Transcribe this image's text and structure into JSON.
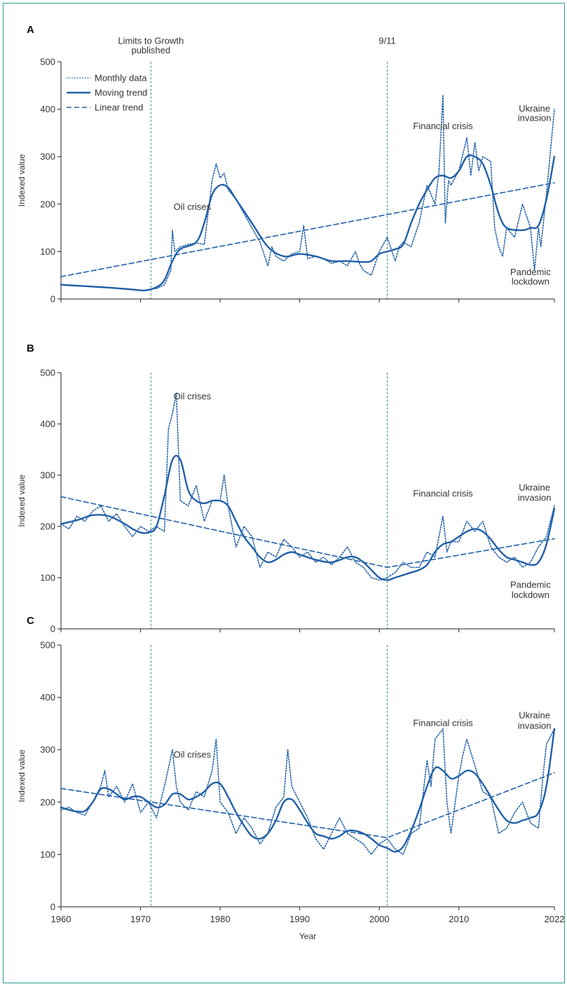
{
  "colors": {
    "series": "#2160a8",
    "event_line": "#2a8c86",
    "axis": "#222222",
    "frame": "#2a9d8f"
  },
  "x_axis_label": "Year",
  "legend": [
    "Monthly data",
    "Moving trend",
    "Linear trend"
  ],
  "chart_data": [
    {
      "panel": "A",
      "type": "line",
      "ylabel": "Indexed value",
      "xlim": [
        1960,
        2022
      ],
      "ylim": [
        0,
        500
      ],
      "x_ticks": [
        1960,
        1970,
        1980,
        1990,
        2000,
        2010,
        2022
      ],
      "y_ticks": [
        0,
        100,
        200,
        300,
        400,
        500
      ],
      "grid": false,
      "legend_position": "top-left",
      "event_lines": [
        1971.3,
        2001.0
      ],
      "annotations": [
        {
          "text": "Limits to Growth",
          "x": 1971.3,
          "y": 538
        },
        {
          "text": "published",
          "x": 1971.3,
          "y": 518
        },
        {
          "text": "9/11",
          "x": 2001.0,
          "y": 538
        },
        {
          "text": "Oil crises",
          "x": 1976.5,
          "y": 188
        },
        {
          "text": "Financial crisis",
          "x": 2008.0,
          "y": 358
        },
        {
          "text": "Ukraine",
          "x": 2019.5,
          "y": 395
        },
        {
          "text": "invasion",
          "x": 2019.5,
          "y": 375
        },
        {
          "text": "Pandemic",
          "x": 2019.0,
          "y": 50
        },
        {
          "text": "lockdown",
          "x": 2019.0,
          "y": 30
        }
      ],
      "series": [
        {
          "name": "Monthly data",
          "style": "dotted",
          "x": [
            1971,
            1972,
            1973,
            1973.8,
            1974,
            1974.3,
            1975,
            1976,
            1977,
            1978,
            1979,
            1979.5,
            1980,
            1980.5,
            1981,
            1982,
            1983,
            1984,
            1985,
            1986,
            1986.5,
            1987,
            1988,
            1989,
            1990,
            1990.5,
            1991,
            1992,
            1993,
            1994,
            1995,
            1996,
            1997,
            1997.5,
            1998,
            1999,
            2000,
            2001,
            2002,
            2002.5,
            2003,
            2004,
            2005,
            2006,
            2007,
            2007.5,
            2008,
            2008.3,
            2008.7,
            2009,
            2010,
            2011,
            2011.5,
            2012,
            2012.5,
            2013,
            2014,
            2014.5,
            2015,
            2015.5,
            2016,
            2017,
            2018,
            2019,
            2019.5,
            2020,
            2020.3,
            2021,
            2021.5,
            2022
          ],
          "y": [
            20,
            22,
            30,
            60,
            145,
            100,
            110,
            115,
            118,
            115,
            250,
            285,
            255,
            265,
            230,
            210,
            180,
            150,
            120,
            70,
            110,
            90,
            80,
            95,
            100,
            155,
            85,
            90,
            85,
            75,
            80,
            70,
            100,
            75,
            60,
            50,
            100,
            130,
            80,
            110,
            120,
            110,
            160,
            240,
            200,
            270,
            430,
            160,
            250,
            240,
            270,
            340,
            260,
            330,
            270,
            300,
            290,
            150,
            110,
            90,
            150,
            130,
            200,
            150,
            60,
            150,
            110,
            220,
            310,
            400
          ]
        },
        {
          "name": "Moving trend",
          "style": "solid",
          "x": [
            1960,
            1963,
            1966,
            1969,
            1970.5,
            1972,
            1973,
            1974,
            1975,
            1977,
            1978,
            1979,
            1980,
            1981,
            1982,
            1984,
            1986,
            1988,
            1990,
            1992,
            1994,
            1996,
            1998,
            1999,
            2000,
            2001,
            2002,
            2003,
            2004,
            2005,
            2006,
            2007,
            2008,
            2009,
            2010,
            2011,
            2012,
            2013,
            2014,
            2015,
            2016,
            2018,
            2019,
            2020,
            2021,
            2022
          ],
          "y": [
            30,
            27,
            24,
            20,
            18,
            25,
            40,
            80,
            105,
            120,
            160,
            220,
            240,
            235,
            210,
            160,
            110,
            90,
            95,
            90,
            80,
            80,
            78,
            80,
            95,
            100,
            105,
            115,
            160,
            200,
            230,
            255,
            260,
            255,
            270,
            300,
            300,
            285,
            240,
            180,
            150,
            145,
            150,
            155,
            210,
            300
          ]
        },
        {
          "name": "Linear trend",
          "style": "dashed",
          "x": [
            1960,
            2022
          ],
          "y": [
            47,
            245
          ]
        }
      ]
    },
    {
      "panel": "B",
      "type": "line",
      "ylabel": "Indexed value",
      "xlim": [
        1960,
        2022
      ],
      "ylim": [
        0,
        500
      ],
      "x_ticks": [
        1960,
        1970,
        1980,
        1990,
        2000,
        2010,
        2022
      ],
      "y_ticks": [
        0,
        100,
        200,
        300,
        400,
        500
      ],
      "grid": false,
      "event_lines": [
        1971.3,
        2001.0
      ],
      "annotations": [
        {
          "text": "Oil crises",
          "x": 1976.5,
          "y": 448
        },
        {
          "text": "Financial crisis",
          "x": 2008.0,
          "y": 258
        },
        {
          "text": "Ukraine",
          "x": 2019.5,
          "y": 270
        },
        {
          "text": "invasion",
          "x": 2019.5,
          "y": 250
        },
        {
          "text": "Pandemic",
          "x": 2019.0,
          "y": 80
        },
        {
          "text": "lockdown",
          "x": 2019.0,
          "y": 60
        }
      ],
      "series": [
        {
          "name": "Monthly data",
          "style": "dotted",
          "x": [
            1960,
            1961,
            1962,
            1963,
            1964,
            1965,
            1966,
            1967,
            1968,
            1969,
            1970,
            1971,
            1972,
            1973,
            1973.5,
            1974,
            1974.5,
            1975,
            1976,
            1977,
            1978,
            1979,
            1980,
            1980.5,
            1981,
            1982,
            1983,
            1984,
            1985,
            1986,
            1987,
            1988,
            1989,
            1990,
            1991,
            1992,
            1993,
            1994,
            1995,
            1996,
            1997,
            1998,
            1999,
            2000,
            2001,
            2002,
            2003,
            2004,
            2005,
            2006,
            2007,
            2008,
            2008.5,
            2009,
            2010,
            2011,
            2012,
            2013,
            2014,
            2015,
            2016,
            2017,
            2018,
            2019,
            2020,
            2021,
            2022
          ],
          "y": [
            205,
            195,
            220,
            210,
            230,
            240,
            210,
            225,
            200,
            180,
            200,
            190,
            200,
            190,
            390,
            420,
            460,
            250,
            240,
            280,
            210,
            250,
            250,
            300,
            240,
            160,
            200,
            180,
            120,
            150,
            140,
            175,
            160,
            140,
            150,
            130,
            140,
            125,
            140,
            160,
            130,
            120,
            100,
            95,
            100,
            110,
            130,
            120,
            120,
            150,
            140,
            220,
            150,
            170,
            170,
            210,
            190,
            210,
            160,
            140,
            130,
            140,
            120,
            130,
            160,
            180,
            240
          ]
        },
        {
          "name": "Moving trend",
          "style": "solid",
          "x": [
            1960,
            1962,
            1964,
            1966,
            1968,
            1969,
            1970,
            1971,
            1972,
            1973,
            1974,
            1975,
            1976,
            1977,
            1978,
            1979,
            1980,
            1981,
            1982,
            1983,
            1984,
            1985,
            1986,
            1987,
            1988,
            1989,
            1990,
            1992,
            1994,
            1996,
            1997,
            1998,
            1999,
            2000,
            2001,
            2002,
            2004,
            2005,
            2006,
            2007,
            2008,
            2009,
            2010,
            2011,
            2012,
            2013,
            2014,
            2015,
            2016,
            2017,
            2018,
            2019,
            2020,
            2021,
            2022
          ],
          "y": [
            205,
            212,
            222,
            220,
            205,
            195,
            188,
            188,
            200,
            260,
            330,
            330,
            270,
            250,
            245,
            250,
            250,
            240,
            210,
            180,
            160,
            140,
            130,
            135,
            145,
            150,
            145,
            135,
            130,
            140,
            140,
            130,
            115,
            100,
            95,
            100,
            110,
            115,
            125,
            150,
            165,
            170,
            180,
            190,
            195,
            190,
            175,
            155,
            140,
            135,
            130,
            125,
            130,
            165,
            235
          ]
        },
        {
          "name": "Linear trend",
          "style": "dashed",
          "x": [
            1960,
            2001,
            2022
          ],
          "y": [
            258,
            120,
            176
          ]
        }
      ]
    },
    {
      "panel": "C",
      "type": "line",
      "ylabel": "Indexed value",
      "xlim": [
        1960,
        2022
      ],
      "ylim": [
        0,
        500
      ],
      "x_ticks": [
        1960,
        1970,
        1980,
        1990,
        2000,
        2010,
        2022
      ],
      "y_ticks": [
        0,
        100,
        200,
        300,
        400,
        500
      ],
      "grid": false,
      "event_lines": [
        1971.3,
        2001.0
      ],
      "annotations": [
        {
          "text": "Oil crises",
          "x": 1976.5,
          "y": 285
        },
        {
          "text": "Financial crisis",
          "x": 2008.0,
          "y": 345
        },
        {
          "text": "Ukraine",
          "x": 2019.5,
          "y": 360
        },
        {
          "text": "invasion",
          "x": 2019.5,
          "y": 340
        }
      ],
      "series": [
        {
          "name": "Monthly data",
          "style": "dotted",
          "x": [
            1960,
            1961,
            1962,
            1963,
            1964,
            1965,
            1965.5,
            1966,
            1967,
            1968,
            1969,
            1970,
            1971,
            1972,
            1973,
            1974,
            1974.5,
            1975,
            1976,
            1977,
            1978,
            1979,
            1979.5,
            1980,
            1981,
            1982,
            1983,
            1984,
            1985,
            1986,
            1987,
            1988,
            1988.5,
            1989,
            1990,
            1991,
            1992,
            1993,
            1994,
            1995,
            1996,
            1997,
            1998,
            1999,
            2000,
            2001,
            2002,
            2003,
            2004,
            2005,
            2006,
            2006.5,
            2007,
            2008,
            2008.5,
            2009,
            2010,
            2010.5,
            2011,
            2012,
            2013,
            2014,
            2015,
            2016,
            2017,
            2018,
            2019,
            2020,
            2020.5,
            2021,
            2022
          ],
          "y": [
            185,
            190,
            180,
            175,
            200,
            230,
            260,
            210,
            230,
            200,
            235,
            180,
            200,
            170,
            230,
            300,
            230,
            200,
            185,
            220,
            210,
            260,
            320,
            200,
            180,
            140,
            170,
            150,
            120,
            140,
            190,
            210,
            300,
            230,
            200,
            170,
            130,
            110,
            140,
            170,
            140,
            130,
            120,
            100,
            120,
            130,
            110,
            100,
            140,
            150,
            280,
            230,
            320,
            340,
            200,
            140,
            250,
            290,
            320,
            270,
            220,
            210,
            140,
            150,
            180,
            200,
            160,
            150,
            240,
            310,
            340
          ]
        },
        {
          "name": "Moving trend",
          "style": "solid",
          "x": [
            1960,
            1961,
            1962,
            1963,
            1964,
            1965,
            1966,
            1967,
            1968,
            1969,
            1970,
            1971,
            1972,
            1973,
            1974,
            1975,
            1976,
            1977,
            1978,
            1979,
            1980,
            1981,
            1982,
            1983,
            1984,
            1985,
            1986,
            1987,
            1988,
            1989,
            1990,
            1991,
            1992,
            1993,
            1994,
            1995,
            1996,
            1997,
            1998,
            1999,
            2000,
            2001,
            2002,
            2003,
            2004,
            2005,
            2006,
            2007,
            2008,
            2009,
            2010,
            2011,
            2012,
            2013,
            2014,
            2015,
            2016,
            2017,
            2018,
            2019,
            2020,
            2021,
            2022
          ],
          "y": [
            190,
            185,
            182,
            183,
            200,
            225,
            225,
            215,
            205,
            210,
            210,
            200,
            190,
            195,
            215,
            215,
            205,
            210,
            220,
            235,
            235,
            210,
            180,
            155,
            135,
            130,
            140,
            165,
            200,
            205,
            185,
            160,
            140,
            135,
            130,
            135,
            145,
            145,
            140,
            130,
            118,
            112,
            105,
            115,
            145,
            185,
            230,
            265,
            260,
            245,
            250,
            260,
            255,
            235,
            210,
            185,
            165,
            160,
            165,
            170,
            180,
            230,
            340
          ]
        },
        {
          "name": "Linear trend",
          "style": "dashed",
          "x": [
            1960,
            2001,
            2022
          ],
          "y": [
            226,
            132,
            256
          ]
        }
      ]
    }
  ]
}
